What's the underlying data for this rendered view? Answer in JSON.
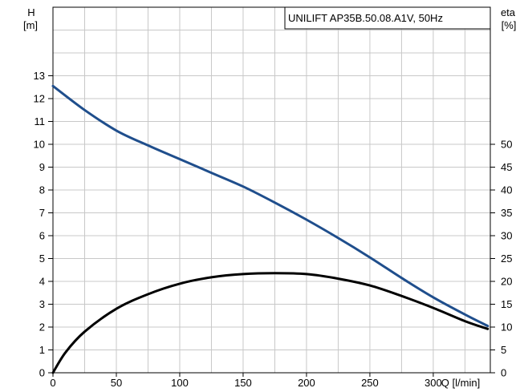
{
  "chart_data": {
    "type": "line",
    "title": "UNILIFT AP35B.50.08.A1V, 50Hz",
    "y_left": {
      "label_line1": "H",
      "label_line2": "[m]",
      "ticks": [
        0,
        1,
        2,
        3,
        4,
        5,
        6,
        7,
        8,
        9,
        10,
        11,
        12,
        13
      ],
      "lim": [
        0,
        16
      ]
    },
    "y_right": {
      "label_line1": "eta",
      "label_line2": "[%]",
      "ticks": [
        0,
        5,
        10,
        15,
        20,
        25,
        30,
        35,
        40,
        45,
        50
      ],
      "lim": [
        0,
        80
      ]
    },
    "x": {
      "label": "Q [l/min]",
      "ticks": [
        0,
        50,
        100,
        150,
        200,
        250,
        300
      ],
      "lim": [
        0,
        345
      ]
    },
    "grid": true,
    "series": [
      {
        "axis": "left",
        "color": "#1f4e8c",
        "x": [
          0,
          25,
          50,
          75,
          100,
          125,
          150,
          175,
          200,
          225,
          250,
          275,
          300,
          325,
          343
        ],
        "y": [
          12.55,
          11.5,
          10.6,
          9.95,
          9.35,
          8.75,
          8.15,
          7.45,
          6.7,
          5.9,
          5.05,
          4.15,
          3.3,
          2.55,
          2.05
        ]
      },
      {
        "axis": "right",
        "color": "#000000",
        "x": [
          0,
          10,
          25,
          50,
          75,
          100,
          125,
          150,
          175,
          200,
          225,
          250,
          275,
          300,
          325,
          343
        ],
        "y": [
          0,
          4.5,
          9,
          14,
          17.2,
          19.5,
          20.9,
          21.6,
          21.8,
          21.6,
          20.6,
          19.1,
          16.8,
          14.2,
          11.3,
          9.6
        ]
      }
    ]
  }
}
